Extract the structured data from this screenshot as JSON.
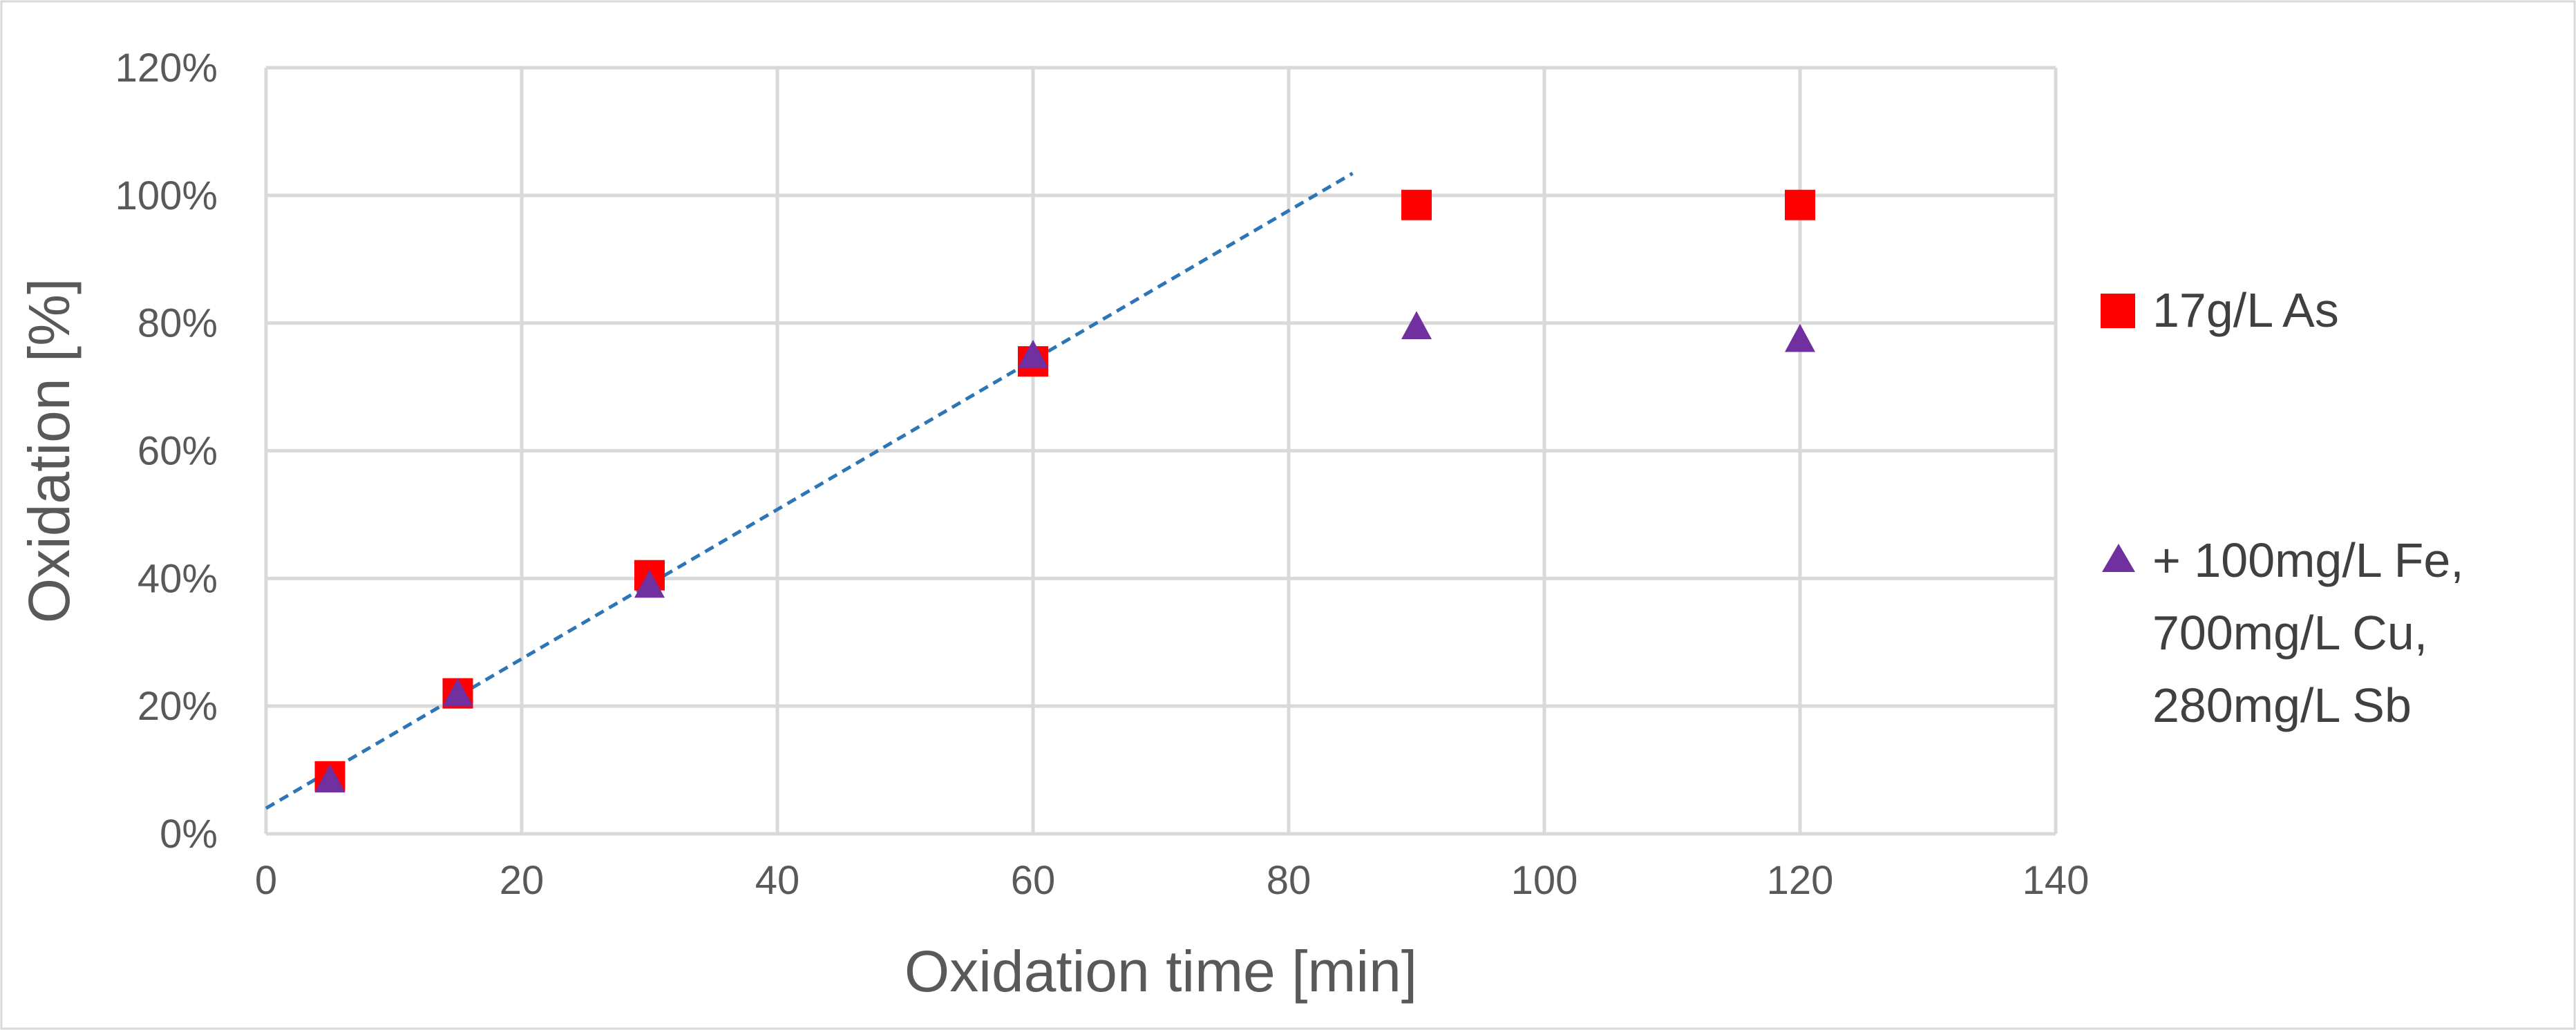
{
  "chart_data": {
    "type": "scatter",
    "title": "",
    "xlabel": "Oxidation time [min]",
    "ylabel": "Oxidation [%]",
    "xlim": [
      0,
      140
    ],
    "ylim": [
      0,
      120
    ],
    "x_ticks": [
      0,
      20,
      40,
      60,
      80,
      100,
      120,
      140
    ],
    "x_tick_labels": [
      "0",
      "20",
      "40",
      "60",
      "80",
      "100",
      "120",
      "140"
    ],
    "y_ticks": [
      0,
      20,
      40,
      60,
      80,
      100,
      120
    ],
    "y_tick_labels": [
      "0%",
      "20%",
      "40%",
      "60%",
      "80%",
      "100%",
      "120%"
    ],
    "grid": true,
    "legend_position": "right",
    "series": [
      {
        "name": "17g/L As",
        "marker": "square",
        "color": "#ff0000",
        "x": [
          5,
          15,
          30,
          60,
          90,
          120
        ],
        "y": [
          9,
          22,
          40.5,
          74,
          98.5,
          98.5
        ]
      },
      {
        "name": "+ 100mg/L Fe, 700mg/L Cu, 280mg/L Sb",
        "legend_lines": [
          "+ 100mg/L Fe,",
          "700mg/L Cu,",
          "280mg/L Sb"
        ],
        "marker": "triangle",
        "color": "#7030a0",
        "x": [
          5,
          15,
          30,
          60,
          90,
          120
        ],
        "y": [
          8.5,
          22,
          39,
          75,
          79.5,
          77.5
        ]
      }
    ],
    "trendline": {
      "type": "linear",
      "style": "dashed",
      "color": "#2e75b6",
      "x_start": 0,
      "x_end": 85,
      "intercept": 4,
      "slope": 1.17
    }
  }
}
